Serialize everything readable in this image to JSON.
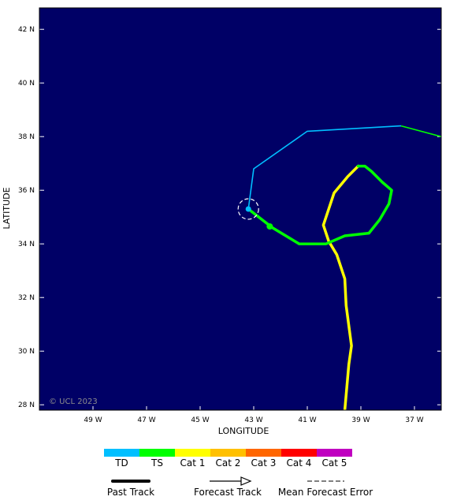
{
  "chart_data": {
    "type": "map",
    "xlabel": "LONGITUDE",
    "ylabel": "LATITUDE",
    "xlim": [
      -51,
      -36
    ],
    "ylim": [
      27.8,
      42.8
    ],
    "x_ticks": [
      {
        "value": -49,
        "label": "49 W"
      },
      {
        "value": -47,
        "label": "47 W"
      },
      {
        "value": -45,
        "label": "45 W"
      },
      {
        "value": -43,
        "label": "43 W"
      },
      {
        "value": -41,
        "label": "41 W"
      },
      {
        "value": -39,
        "label": "39 W"
      },
      {
        "value": -37,
        "label": "37 W"
      }
    ],
    "y_ticks": [
      {
        "value": 42,
        "label": "42 N"
      },
      {
        "value": 40,
        "label": "40 N"
      },
      {
        "value": 38,
        "label": "38 N"
      },
      {
        "value": 36,
        "label": "36 N"
      },
      {
        "value": 34,
        "label": "34 N"
      },
      {
        "value": 32,
        "label": "32 N"
      },
      {
        "value": 30,
        "label": "30 N"
      },
      {
        "value": 28,
        "label": "28 N"
      }
    ],
    "copyright": "© UCL 2023",
    "past_track": [
      {
        "category": "Cat 1",
        "color": "#ffff00",
        "points": [
          [
            -39.6,
            27.8
          ],
          [
            -39.45,
            29.5
          ],
          [
            -39.35,
            30.2
          ],
          [
            -39.55,
            31.7
          ],
          [
            -39.6,
            32.7
          ],
          [
            -39.9,
            33.6
          ],
          [
            -40.2,
            34.1
          ],
          [
            -40.4,
            34.7
          ],
          [
            -40.2,
            35.3
          ],
          [
            -40.0,
            35.9
          ],
          [
            -39.5,
            36.5
          ],
          [
            -39.1,
            36.9
          ]
        ]
      },
      {
        "category": "TS",
        "color": "#00ff00",
        "points": [
          [
            -39.1,
            36.9
          ],
          [
            -38.85,
            36.9
          ],
          [
            -38.6,
            36.7
          ],
          [
            -38.2,
            36.3
          ],
          [
            -37.85,
            36.0
          ],
          [
            -37.95,
            35.5
          ],
          [
            -38.3,
            34.9
          ],
          [
            -38.7,
            34.4
          ],
          [
            -39.6,
            34.3
          ],
          [
            -40.3,
            34.0
          ],
          [
            -41.3,
            34.0
          ],
          [
            -42.3,
            34.6
          ],
          [
            -43.2,
            35.3
          ]
        ]
      }
    ],
    "forecast_track": [
      {
        "category": "TD",
        "color": "#00bfff",
        "points": [
          [
            -43.2,
            35.3
          ],
          [
            -43.0,
            36.8
          ],
          [
            -41.0,
            38.2
          ],
          [
            -37.5,
            38.4
          ]
        ]
      },
      {
        "category": "TS",
        "color": "#00ff00",
        "points": [
          [
            -37.5,
            38.4
          ],
          [
            -36.0,
            38.0
          ]
        ]
      }
    ],
    "current_position": {
      "lon": -43.2,
      "lat": 35.3,
      "color": "#00bfff"
    },
    "marker_points": [
      {
        "lon": -42.4,
        "lat": 34.65,
        "color": "#00ff00"
      }
    ],
    "error_circle": {
      "lon": -43.2,
      "lat": 35.3
    }
  },
  "legend": {
    "categories": [
      {
        "label": "TD",
        "color": "#00bfff"
      },
      {
        "label": "TS",
        "color": "#00ff00"
      },
      {
        "label": "Cat 1",
        "color": "#ffff00"
      },
      {
        "label": "Cat 2",
        "color": "#ffc000"
      },
      {
        "label": "Cat 3",
        "color": "#ff6600"
      },
      {
        "label": "Cat 4",
        "color": "#ff0000"
      },
      {
        "label": "Cat 5",
        "color": "#c000c0"
      }
    ],
    "past_track_label": "Past Track",
    "forecast_track_label": "Forecast Track",
    "mean_error_label": "Mean Forecast Error"
  },
  "colors": {
    "ocean": "#000066",
    "frame": "#000000"
  }
}
